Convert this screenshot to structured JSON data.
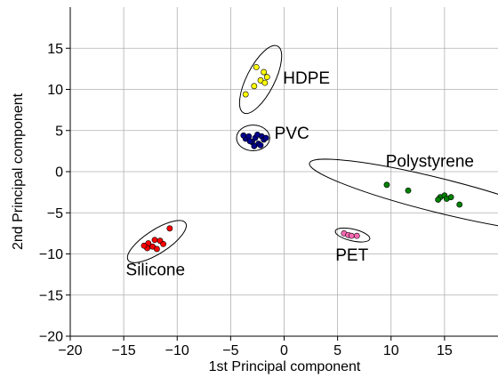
{
  "chart_data": {
    "type": "scatter",
    "title": "",
    "xlabel": "1st Principal component",
    "ylabel": "2nd Principal component",
    "xlim": [
      -20,
      20
    ],
    "ylim": [
      -20,
      20
    ],
    "x_ticks": [
      -20,
      -15,
      -10,
      -5,
      0,
      5,
      10,
      15
    ],
    "x_tick_labels": [
      "−20",
      "−15",
      "−10",
      "−5",
      "0",
      "5",
      "10",
      "15"
    ],
    "y_ticks": [
      -20,
      -15,
      -10,
      -5,
      0,
      5,
      10,
      15
    ],
    "y_tick_labels": [
      "−20",
      "−15",
      "−10",
      "−5",
      "0",
      "5",
      "10",
      "15"
    ],
    "grid": true,
    "legend": "none",
    "series": [
      {
        "name": "HDPE",
        "color": "#ffff00",
        "points": [
          [
            -2.6,
            12.7
          ],
          [
            -1.9,
            12.1
          ],
          [
            -1.6,
            11.5
          ],
          [
            -2.2,
            11.1
          ],
          [
            -1.8,
            10.8
          ],
          [
            -2.8,
            10.4
          ],
          [
            -3.6,
            9.4
          ]
        ],
        "ellipse": {
          "center": [
            -2.2,
            11.2
          ],
          "semi_axes": [
            3.5,
            1.3
          ],
          "angle_deg": 63
        },
        "label_pos": [
          -0.1,
          10.7
        ]
      },
      {
        "name": "PVC",
        "color": "#00008b",
        "points": [
          [
            -3.6,
            4.0
          ],
          [
            -3.3,
            4.3
          ],
          [
            -3.0,
            3.6
          ],
          [
            -2.7,
            4.1
          ],
          [
            -2.4,
            3.4
          ],
          [
            -2.1,
            4.3
          ],
          [
            -1.9,
            3.9
          ],
          [
            -2.8,
            3.1
          ],
          [
            -3.2,
            3.7
          ],
          [
            -2.5,
            4.5
          ],
          [
            -1.7,
            4.1
          ],
          [
            -3.8,
            4.4
          ],
          [
            -2.2,
            3.2
          ]
        ],
        "ellipse": {
          "center": [
            -2.9,
            4.1
          ],
          "semi_axes": [
            1.55,
            1.2
          ],
          "angle_deg": 0
        },
        "label_pos": [
          -0.9,
          4.0
        ]
      },
      {
        "name": "Polystyrene",
        "color": "#008000",
        "points": [
          [
            9.6,
            -1.6
          ],
          [
            11.6,
            -2.3
          ],
          [
            14.6,
            -3.1
          ],
          [
            15.0,
            -2.9
          ],
          [
            15.2,
            -3.3
          ],
          [
            15.6,
            -3.1
          ],
          [
            14.4,
            -3.4
          ],
          [
            16.4,
            -4.0
          ]
        ],
        "ellipse": {
          "center": [
            14.5,
            -2.9
          ],
          "semi_axes": [
            12.5,
            1.6
          ],
          "angle_deg": -14
        },
        "label_pos": [
          9.5,
          0.6
        ]
      },
      {
        "name": "PET",
        "color": "#ff69b4",
        "points": [
          [
            5.6,
            -7.5
          ],
          [
            6.0,
            -7.7
          ],
          [
            6.3,
            -7.8
          ],
          [
            6.8,
            -7.8
          ]
        ],
        "ellipse": {
          "center": [
            6.4,
            -7.7
          ],
          "semi_axes": [
            1.65,
            0.55
          ],
          "angle_deg": -13
        },
        "label_pos": [
          4.8,
          -10.8
        ]
      },
      {
        "name": "Silicone",
        "color": "#ff0000",
        "points": [
          [
            -10.7,
            -6.9
          ],
          [
            -11.6,
            -8.4
          ],
          [
            -12.1,
            -8.3
          ],
          [
            -12.3,
            -9.1
          ],
          [
            -12.7,
            -8.7
          ],
          [
            -12.8,
            -9.3
          ],
          [
            -13.1,
            -9.0
          ],
          [
            -11.9,
            -9.4
          ],
          [
            -11.3,
            -8.8
          ]
        ],
        "ellipse": {
          "center": [
            -11.9,
            -8.5
          ],
          "semi_axes": [
            3.2,
            1.1
          ],
          "angle_deg": 33
        },
        "label_pos": [
          -14.8,
          -12.6
        ]
      }
    ]
  }
}
